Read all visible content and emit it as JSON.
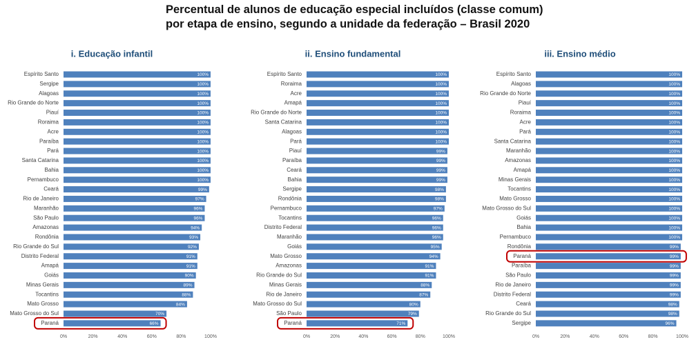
{
  "title": "Percentual de alunos de educação especial incluídos (classe comum) por etapa de ensino, segundo a unidade da federação – Brasil 2020",
  "chart_data": [
    {
      "type": "bar",
      "orientation": "horizontal",
      "title": "i. Educação infantil",
      "color": "#4f81bd",
      "highlight": "Paraná",
      "categories": [
        "Espírito Santo",
        "Sergipe",
        "Alagoas",
        "Rio Grande do Norte",
        "Piauí",
        "Roraima",
        "Acre",
        "Paraíba",
        "Pará",
        "Santa Catarina",
        "Bahia",
        "Pernambuco",
        "Ceará",
        "Rio de Janeiro",
        "Maranhão",
        "São Paulo",
        "Amazonas",
        "Rondônia",
        "Rio Grande do Sul",
        "Distrito Federal",
        "Amapá",
        "Goiás",
        "Minas Gerais",
        "Tocantins",
        "Mato Grosso",
        "Mato Grosso do Sul",
        "Paraná"
      ],
      "values": [
        100,
        100,
        100,
        100,
        100,
        100,
        100,
        100,
        100,
        100,
        100,
        100,
        99,
        97,
        96,
        96,
        94,
        93,
        92,
        91,
        91,
        90,
        89,
        88,
        84,
        70,
        66
      ],
      "value_labels": [
        "100%",
        "100%",
        "100%",
        "100%",
        "100%",
        "100%",
        "100%",
        "100%",
        "100%",
        "100%",
        "100%",
        "100%",
        "99%",
        "97%",
        "96%",
        "96%",
        "94%",
        "93%",
        "92%",
        "91%",
        "91%",
        "90%",
        "89%",
        "88%",
        "84%",
        "70%",
        "66%"
      ],
      "xlim": [
        0,
        100
      ],
      "xticks": [
        {
          "value": 0,
          "label": "0%"
        },
        {
          "value": 20,
          "label": "20%"
        },
        {
          "value": 40,
          "label": "40%"
        },
        {
          "value": 60,
          "label": "60%"
        },
        {
          "value": 80,
          "label": "80%"
        },
        {
          "value": 100,
          "label": "100%"
        }
      ]
    },
    {
      "type": "bar",
      "orientation": "horizontal",
      "title": "ii. Ensino fundamental",
      "color": "#4f81bd",
      "highlight": "Paraná",
      "categories": [
        "Espírito Santo",
        "Roraima",
        "Acre",
        "Amapá",
        "Rio Grande do Norte",
        "Santa Catarina",
        "Alagoas",
        "Pará",
        "Piauí",
        "Paraíba",
        "Ceará",
        "Bahia",
        "Sergipe",
        "Rondônia",
        "Pernambuco",
        "Tocantins",
        "Distrito Federal",
        "Maranhão",
        "Goiás",
        "Mato Grosso",
        "Amazonas",
        "Rio Grande do Sul",
        "Minas Gerais",
        "Rio de Janeiro",
        "Mato Grosso do Sul",
        "São Paulo",
        "Paraná"
      ],
      "values": [
        100,
        100,
        100,
        100,
        100,
        100,
        100,
        100,
        99,
        99,
        99,
        99,
        98,
        98,
        97,
        96,
        96,
        96,
        95,
        94,
        91,
        91,
        88,
        87,
        80,
        79,
        71
      ],
      "value_labels": [
        "100%",
        "100%",
        "100%",
        "100%",
        "100%",
        "100%",
        "100%",
        "100%",
        "99%",
        "99%",
        "99%",
        "99%",
        "98%",
        "98%",
        "97%",
        "96%",
        "96%",
        "96%",
        "95%",
        "94%",
        "91%",
        "91%",
        "88%",
        "87%",
        "80%",
        "79%",
        "71%"
      ],
      "xlim": [
        0,
        100
      ],
      "xticks": [
        {
          "value": 0,
          "label": "0%"
        },
        {
          "value": 20,
          "label": "20%"
        },
        {
          "value": 40,
          "label": "40%"
        },
        {
          "value": 60,
          "label": "60%"
        },
        {
          "value": 80,
          "label": "80%"
        },
        {
          "value": 100,
          "label": "100%"
        }
      ]
    },
    {
      "type": "bar",
      "orientation": "horizontal",
      "title": "iii. Ensino médio",
      "color": "#4f81bd",
      "highlight": "Paraná",
      "categories": [
        "Espírito Santo",
        "Alagoas",
        "Rio Grande do Norte",
        "Piauí",
        "Roraima",
        "Acre",
        "Pará",
        "Santa Catarina",
        "Maranhão",
        "Amazonas",
        "Amapá",
        "Minas Gerais",
        "Tocantins",
        "Mato Grosso",
        "Mato Grosso do Sul",
        "Goiás",
        "Bahia",
        "Pernambuco",
        "Rondônia",
        "Paraná",
        "Paraíba",
        "São Paulo",
        "Rio de Janeiro",
        "Distrito Federal",
        "Ceará",
        "Rio Grande do Sul",
        "Sergipe"
      ],
      "values": [
        100,
        100,
        100,
        100,
        100,
        100,
        100,
        100,
        100,
        100,
        100,
        100,
        100,
        100,
        100,
        100,
        100,
        100,
        99,
        99,
        99,
        99,
        99,
        99,
        98,
        98,
        96
      ],
      "value_labels": [
        "100%",
        "100%",
        "100%",
        "100%",
        "100%",
        "100%",
        "100%",
        "100%",
        "100%",
        "100%",
        "100%",
        "100%",
        "100%",
        "100%",
        "100%",
        "100%",
        "100%",
        "100%",
        "99%",
        "99%",
        "99%",
        "99%",
        "99%",
        "99%",
        "98%",
        "98%",
        "96%"
      ],
      "xlim": [
        0,
        100
      ],
      "xticks": [
        {
          "value": 0,
          "label": "0%"
        },
        {
          "value": 20,
          "label": "20%"
        },
        {
          "value": 40,
          "label": "40%"
        },
        {
          "value": 60,
          "label": "60%"
        },
        {
          "value": 80,
          "label": "80%"
        },
        {
          "value": 100,
          "label": "100%"
        }
      ]
    }
  ]
}
